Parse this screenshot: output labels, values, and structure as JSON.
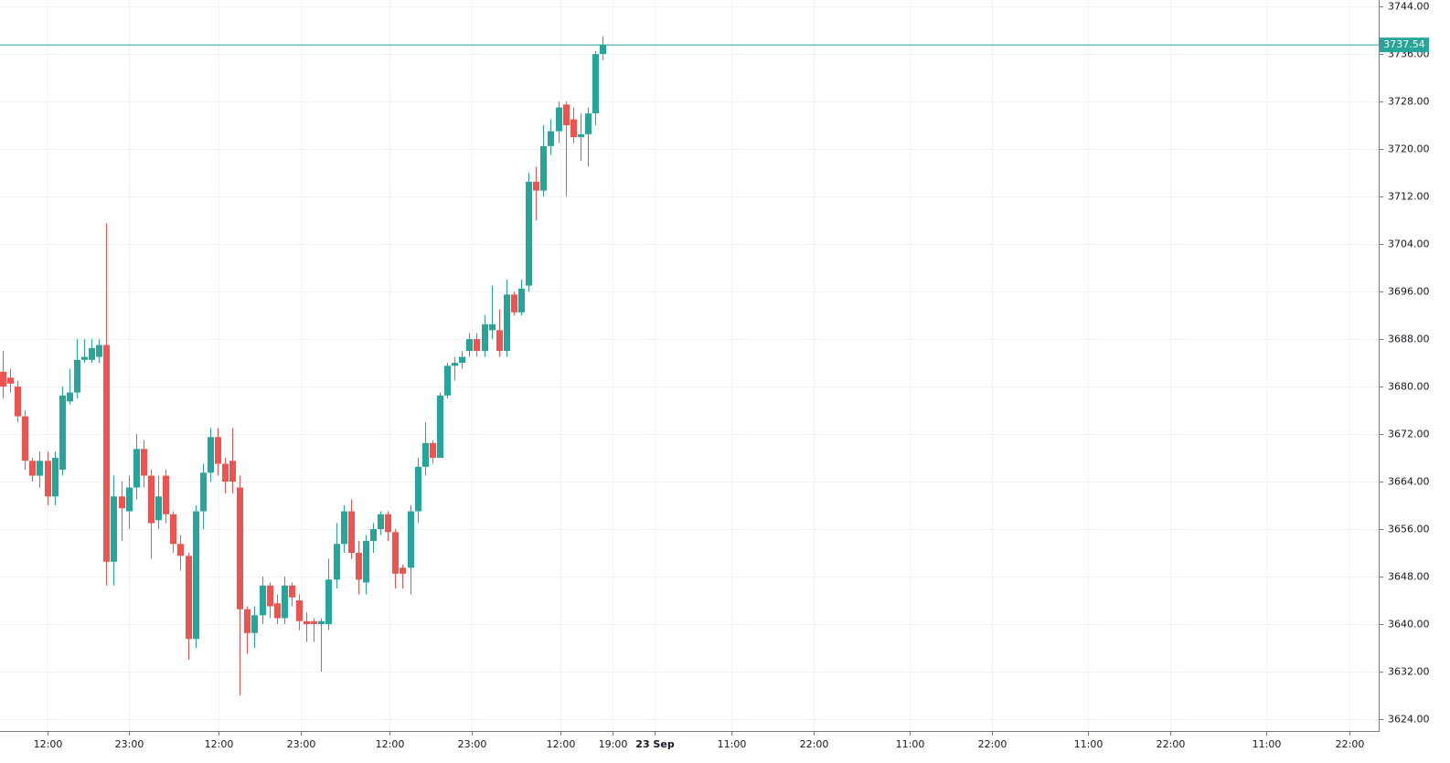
{
  "chart_data": {
    "type": "candlestick",
    "up_color": "#26a69a",
    "down_color": "#ef5350",
    "grid": true,
    "xlim": [
      -0.37,
      185.8
    ],
    "ylim": [
      3622,
      3745.1
    ],
    "xticks": [
      {
        "value": 6.1,
        "label": "12:00"
      },
      {
        "value": 17.0,
        "label": "23:00"
      },
      {
        "value": 29.1,
        "label": "12:00"
      },
      {
        "value": 40.3,
        "label": "23:00"
      },
      {
        "value": 52.2,
        "label": "12:00"
      },
      {
        "value": 63.3,
        "label": "23:00"
      },
      {
        "value": 75.3,
        "label": "12:00"
      },
      {
        "value": 82.4,
        "label": "19:00"
      },
      {
        "value": 88.0,
        "label": "23 Sep",
        "bold": true
      },
      {
        "value": 98.4,
        "label": "11:00"
      },
      {
        "value": 109.5,
        "label": "22:00"
      },
      {
        "value": 122.5,
        "label": "11:00"
      },
      {
        "value": 133.6,
        "label": "22:00"
      },
      {
        "value": 146.5,
        "label": "11:00"
      },
      {
        "value": 157.7,
        "label": "22:00"
      },
      {
        "value": 170.6,
        "label": "11:00"
      },
      {
        "value": 181.9,
        "label": "22:00"
      }
    ],
    "yticks": [
      {
        "value": 3624,
        "label": "3624.00"
      },
      {
        "value": 3632,
        "label": "3632.00"
      },
      {
        "value": 3640,
        "label": "3640.00"
      },
      {
        "value": 3648,
        "label": "3648.00"
      },
      {
        "value": 3656,
        "label": "3656.00"
      },
      {
        "value": 3664,
        "label": "3664.00"
      },
      {
        "value": 3672,
        "label": "3672.00"
      },
      {
        "value": 3680,
        "label": "3680.00"
      },
      {
        "value": 3688,
        "label": "3688.00"
      },
      {
        "value": 3696,
        "label": "3696.00"
      },
      {
        "value": 3704,
        "label": "3704.00"
      },
      {
        "value": 3712,
        "label": "3712.00"
      },
      {
        "value": 3720,
        "label": "3720.00"
      },
      {
        "value": 3728,
        "label": "3728.00"
      },
      {
        "value": 3736,
        "label": "3736.00"
      },
      {
        "value": 3744,
        "label": "3744.00"
      }
    ],
    "last_price": 3737.54,
    "x": [
      0,
      1,
      2,
      3,
      4,
      5,
      6,
      7,
      8,
      9,
      10,
      11,
      12,
      13,
      14,
      15,
      16,
      17,
      18,
      19,
      20,
      21,
      22,
      23,
      24,
      25,
      26,
      27,
      28,
      29,
      30,
      31,
      32,
      33,
      34,
      35,
      36,
      37,
      38,
      39,
      40,
      41,
      42,
      43,
      44,
      45,
      46,
      47,
      48,
      49,
      50,
      51,
      52,
      53,
      54,
      55,
      56,
      57,
      58,
      59,
      60,
      61,
      62,
      63,
      64,
      65,
      66,
      67,
      68,
      69,
      70,
      71,
      72,
      73,
      74,
      75,
      76,
      77,
      78,
      79,
      80,
      81
    ],
    "open": [
      3682.5,
      3681.5,
      3680,
      3675,
      3667.5,
      3665,
      3667.5,
      3661.5,
      3666,
      3677.5,
      3679,
      3684.5,
      3684.5,
      3685,
      3687,
      3650.5,
      3661.5,
      3659,
      3663,
      3669.5,
      3665,
      3657.5,
      3665,
      3658.5,
      3653.5,
      3651.5,
      3637.5,
      3659,
      3665.5,
      3671.5,
      3667,
      3667.5,
      3663,
      3642.5,
      3638.5,
      3641.5,
      3646.5,
      3643.5,
      3641,
      3646.5,
      3644,
      3640.5,
      3640.5,
      3640,
      3640,
      3647.5,
      3653.5,
      3659,
      3652,
      3647,
      3654,
      3656,
      3658.5,
      3655.5,
      3649.5,
      3649.5,
      3659,
      3666.5,
      3670.5,
      3668,
      3678.5,
      3683.5,
      3684,
      3686,
      3688,
      3686,
      3689.5,
      3689.5,
      3686,
      3695.5,
      3692.5,
      3697,
      3714.5,
      3713,
      3720.5,
      3723,
      3727.5,
      3725,
      3722,
      3722.5,
      3726,
      3736
    ],
    "high": [
      3686,
      3683,
      3681,
      3676,
      3668,
      3669,
      3669,
      3669,
      3680,
      3683,
      3688,
      3688,
      3688,
      3688,
      3707.5,
      3665,
      3664,
      3665,
      3672,
      3671,
      3666,
      3665,
      3666,
      3659,
      3655,
      3652,
      3660,
      3667,
      3673,
      3673,
      3668,
      3673,
      3665,
      3643,
      3643,
      3648,
      3647,
      3645,
      3648,
      3647,
      3645,
      3642,
      3641,
      3641,
      3651,
      3657,
      3660,
      3661,
      3654,
      3655,
      3657,
      3659,
      3659,
      3656,
      3650,
      3660,
      3668,
      3674,
      3671,
      3679,
      3684,
      3685,
      3686,
      3689,
      3689,
      3692,
      3697,
      3693,
      3698,
      3696,
      3698,
      3716,
      3717,
      3724,
      3725,
      3728,
      3728,
      3727,
      3726,
      3727,
      3736.5,
      3739
    ],
    "low": [
      3678,
      3679,
      3674,
      3666,
      3664,
      3663,
      3660,
      3660,
      3665,
      3677,
      3678,
      3684,
      3684,
      3684,
      3646.5,
      3646.5,
      3654,
      3656,
      3661,
      3663,
      3651,
      3656,
      3657,
      3652,
      3649,
      3634,
      3636,
      3656,
      3664,
      3665,
      3662,
      3662,
      3628,
      3635,
      3636,
      3640,
      3641,
      3640,
      3640,
      3643,
      3639,
      3637,
      3637,
      3632,
      3639,
      3646,
      3652,
      3651,
      3645,
      3645,
      3652,
      3655,
      3654,
      3646,
      3646,
      3645,
      3657,
      3665,
      3667,
      3668,
      3678,
      3681,
      3683,
      3685,
      3685,
      3685,
      3688,
      3685,
      3685,
      3692,
      3692,
      3696,
      3708,
      3712,
      3719,
      3721,
      3712,
      3721,
      3718,
      3717,
      3724,
      3735
    ],
    "close": [
      3680,
      3680.5,
      3675,
      3667.5,
      3665,
      3667.5,
      3661.5,
      3668,
      3678.5,
      3679,
      3684.5,
      3685,
      3686.5,
      3687,
      3650.5,
      3661.5,
      3659.5,
      3663,
      3669.5,
      3665,
      3657,
      3661.5,
      3658.5,
      3653.5,
      3651.5,
      3637.5,
      3659,
      3665.5,
      3671.5,
      3667,
      3664,
      3664,
      3642.5,
      3638.5,
      3641.5,
      3646.5,
      3643,
      3641,
      3646.5,
      3644.5,
      3640.5,
      3640,
      3640,
      3640.5,
      3647.5,
      3653.5,
      3659,
      3652,
      3647.5,
      3654,
      3656,
      3658.5,
      3655.5,
      3648.5,
      3648.5,
      3659,
      3666.5,
      3670.5,
      3668,
      3678.5,
      3683.5,
      3684,
      3685,
      3688,
      3686,
      3690.5,
      3690.5,
      3686,
      3695.5,
      3692.5,
      3696.5,
      3714.5,
      3713,
      3720.5,
      3723,
      3727,
      3724,
      3722,
      3722.5,
      3726,
      3736,
      3737.54
    ]
  }
}
